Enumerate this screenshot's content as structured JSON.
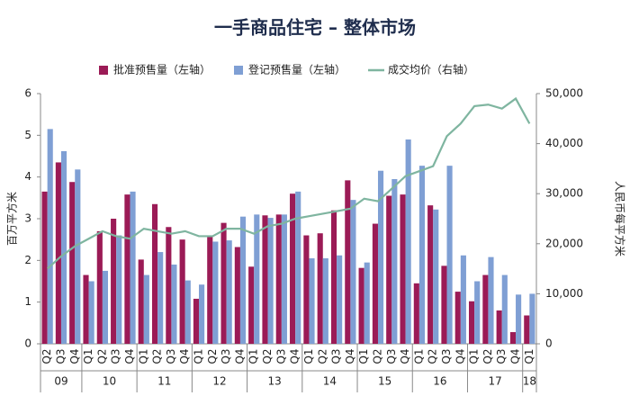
{
  "chart_data": {
    "type": "bar_line",
    "title": "一手商品住宅 – 整体市场",
    "y_label": "百万平方米",
    "y2_label": "人民币每平方米",
    "groups": [
      {
        "label": "09",
        "categories": [
          "Q2",
          "Q3",
          "Q4"
        ]
      },
      {
        "label": "10",
        "categories": [
          "Q1",
          "Q2",
          "Q3",
          "Q4"
        ]
      },
      {
        "label": "11",
        "categories": [
          "Q1",
          "Q2",
          "Q3",
          "Q4"
        ]
      },
      {
        "label": "12",
        "categories": [
          "Q1",
          "Q2",
          "Q3",
          "Q4"
        ]
      },
      {
        "label": "13",
        "categories": [
          "Q1",
          "Q2",
          "Q3",
          "Q4"
        ]
      },
      {
        "label": "14",
        "categories": [
          "Q1",
          "Q2",
          "Q3",
          "Q4"
        ]
      },
      {
        "label": "15",
        "categories": [
          "Q1",
          "Q2",
          "Q3",
          "Q4"
        ]
      },
      {
        "label": "16",
        "categories": [
          "Q1",
          "Q2",
          "Q3",
          "Q4"
        ]
      },
      {
        "label": "17",
        "categories": [
          "Q1",
          "Q2",
          "Q3",
          "Q4"
        ]
      },
      {
        "label": "18",
        "categories": [
          "Q1"
        ]
      }
    ],
    "series": [
      {
        "name": "批准预售量（左轴）",
        "type": "bar",
        "color": "#9b1b56",
        "values": [
          3.65,
          4.35,
          3.88,
          1.65,
          2.7,
          3.0,
          3.58,
          2.02,
          3.35,
          2.8,
          2.5,
          1.08,
          2.58,
          2.9,
          2.32,
          1.85,
          3.08,
          3.1,
          3.6,
          2.6,
          2.65,
          3.2,
          3.92,
          1.82,
          2.88,
          3.55,
          3.58,
          1.45,
          3.32,
          1.87,
          1.25,
          1.02,
          1.65,
          0.8,
          0.28,
          0.68
        ]
      },
      {
        "name": "登记预售量（左轴）",
        "type": "bar",
        "color": "#7f9fd4",
        "values": [
          5.15,
          4.62,
          4.18,
          1.5,
          1.75,
          2.6,
          3.65,
          1.65,
          2.2,
          1.9,
          1.52,
          1.42,
          2.45,
          2.48,
          3.05,
          3.1,
          3.02,
          3.1,
          3.65,
          2.05,
          2.05,
          2.12,
          3.45,
          1.95,
          4.15,
          3.95,
          4.9,
          4.27,
          3.22,
          4.27,
          2.12,
          1.5,
          2.08,
          1.65,
          1.18,
          1.2
        ]
      },
      {
        "name": "成交均价（右轴）",
        "type": "line",
        "axis": "y2",
        "color": "#7fb5a0",
        "values": [
          15000,
          17500,
          19500,
          21000,
          22500,
          21500,
          21000,
          23000,
          22500,
          22000,
          22500,
          21500,
          21500,
          23000,
          23000,
          22000,
          23500,
          24000,
          25000,
          25500,
          26000,
          26500,
          27000,
          29000,
          28500,
          31000,
          33500,
          34500,
          35500,
          41500,
          44000,
          47500,
          47800,
          47000,
          49000,
          44000
        ]
      }
    ],
    "ylim": [
      0,
      6
    ],
    "yticks": [
      0,
      1,
      2,
      3,
      4,
      5,
      6
    ],
    "y2lim": [
      0,
      50000
    ],
    "y2ticks": [
      0,
      {
        "value": 10000,
        "label": "10,000"
      },
      {
        "value": 20000,
        "label": "20,000"
      },
      {
        "value": 30000,
        "label": "30,000"
      },
      {
        "value": 40000,
        "label": "40,000"
      },
      {
        "value": 50000,
        "label": "50,000"
      }
    ]
  }
}
